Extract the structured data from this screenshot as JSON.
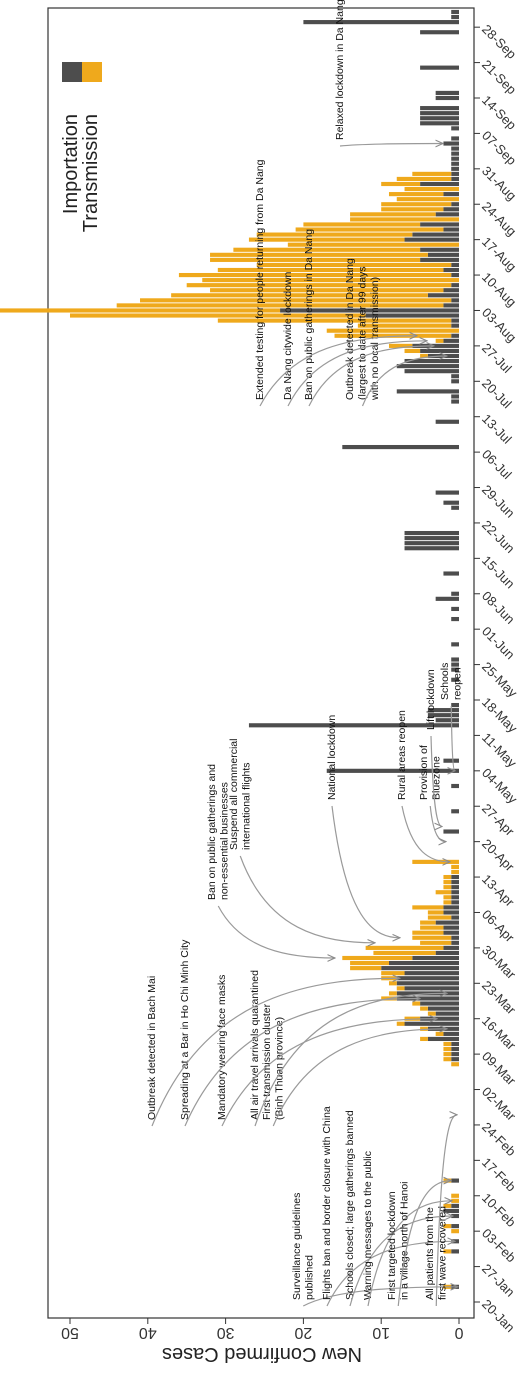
{
  "chart_data": {
    "type": "bar",
    "stacked": true,
    "orientation": "rotated-90-clockwise",
    "ylabel": "New Confirmed Cases",
    "ylim": [
      0,
      55
    ],
    "yticks": [
      0,
      10,
      20,
      30,
      40,
      50
    ],
    "xlim": [
      "2020-01-20",
      "2020-10-01"
    ],
    "date_ticks": [
      "20-Jan",
      "27-Jan",
      "03-Feb",
      "10-Feb",
      "17-Feb",
      "24-Feb",
      "02-Mar",
      "09-Mar",
      "16-Mar",
      "23-Mar",
      "30-Mar",
      "06-Apr",
      "13-Apr",
      "20-Apr",
      "27-Apr",
      "04-May",
      "11-May",
      "18-May",
      "25-May",
      "01-Jun",
      "08-Jun",
      "15-Jun",
      "22-Jun",
      "29-Jun",
      "06-Jul",
      "13-Jul",
      "20-Jul",
      "27-Jul",
      "03-Aug",
      "10-Aug",
      "17-Aug",
      "24-Aug",
      "31-Aug",
      "07-Sep",
      "14-Sep",
      "21-Sep",
      "28-Sep"
    ],
    "legend": {
      "position": "top-left",
      "entries": [
        "Importation",
        "Transmission"
      ]
    },
    "colors": {
      "Importation": "#4d4d4d",
      "Transmission": "#efa91c"
    },
    "series": [
      {
        "name": "Importation",
        "points": [
          [
            "2020-01-23",
            1
          ],
          [
            "2020-01-30",
            1
          ],
          [
            "2020-02-01",
            1
          ],
          [
            "2020-02-04",
            1
          ],
          [
            "2020-02-06",
            1
          ],
          [
            "2020-02-07",
            2
          ],
          [
            "2020-02-08",
            1
          ],
          [
            "2020-02-13",
            1
          ],
          [
            "2020-03-08",
            1
          ],
          [
            "2020-03-09",
            1
          ],
          [
            "2020-03-10",
            1
          ],
          [
            "2020-03-11",
            1
          ],
          [
            "2020-03-12",
            4
          ],
          [
            "2020-03-13",
            2
          ],
          [
            "2020-03-14",
            4
          ],
          [
            "2020-03-15",
            7
          ],
          [
            "2020-03-16",
            5
          ],
          [
            "2020-03-17",
            3
          ],
          [
            "2020-03-18",
            4
          ],
          [
            "2020-03-19",
            5
          ],
          [
            "2020-03-20",
            8
          ],
          [
            "2020-03-21",
            8
          ],
          [
            "2020-03-22",
            7
          ],
          [
            "2020-03-23",
            8
          ],
          [
            "2020-03-24",
            8
          ],
          [
            "2020-03-25",
            7
          ],
          [
            "2020-03-26",
            10
          ],
          [
            "2020-03-27",
            9
          ],
          [
            "2020-03-28",
            6
          ],
          [
            "2020-03-29",
            3
          ],
          [
            "2020-03-30",
            2
          ],
          [
            "2020-03-31",
            1
          ],
          [
            "2020-04-01",
            1
          ],
          [
            "2020-04-02",
            2
          ],
          [
            "2020-04-03",
            2
          ],
          [
            "2020-04-04",
            3
          ],
          [
            "2020-04-05",
            1
          ],
          [
            "2020-04-06",
            2
          ],
          [
            "2020-04-07",
            2
          ],
          [
            "2020-04-08",
            1
          ],
          [
            "2020-04-09",
            1
          ],
          [
            "2020-04-10",
            1
          ],
          [
            "2020-04-11",
            1
          ],
          [
            "2020-04-12",
            1
          ],
          [
            "2020-04-13",
            1
          ],
          [
            "2020-04-22",
            2
          ],
          [
            "2020-04-26",
            1
          ],
          [
            "2020-05-01",
            1
          ],
          [
            "2020-05-04",
            17
          ],
          [
            "2020-05-06",
            2
          ],
          [
            "2020-05-13",
            27
          ],
          [
            "2020-05-14",
            3
          ],
          [
            "2020-05-15",
            4
          ],
          [
            "2020-05-16",
            4
          ],
          [
            "2020-05-17",
            1
          ],
          [
            "2020-05-22",
            1
          ],
          [
            "2020-05-24",
            1
          ],
          [
            "2020-05-25",
            1
          ],
          [
            "2020-05-26",
            1
          ],
          [
            "2020-05-29",
            1
          ],
          [
            "2020-06-03",
            1
          ],
          [
            "2020-06-05",
            1
          ],
          [
            "2020-06-07",
            3
          ],
          [
            "2020-06-08",
            1
          ],
          [
            "2020-06-12",
            2
          ],
          [
            "2020-06-17",
            7
          ],
          [
            "2020-06-18",
            7
          ],
          [
            "2020-06-19",
            7
          ],
          [
            "2020-06-20",
            7
          ],
          [
            "2020-06-25",
            1
          ],
          [
            "2020-06-26",
            2
          ],
          [
            "2020-06-28",
            3
          ],
          [
            "2020-07-07",
            15
          ],
          [
            "2020-07-12",
            3
          ],
          [
            "2020-07-16",
            1
          ],
          [
            "2020-07-17",
            1
          ],
          [
            "2020-07-18",
            8
          ],
          [
            "2020-07-20",
            1
          ],
          [
            "2020-07-21",
            1
          ],
          [
            "2020-07-22",
            7
          ],
          [
            "2020-07-23",
            8
          ],
          [
            "2020-07-24",
            7
          ],
          [
            "2020-07-25",
            4
          ],
          [
            "2020-07-26",
            5
          ],
          [
            "2020-07-27",
            6
          ],
          [
            "2020-07-28",
            2
          ],
          [
            "2020-07-29",
            1
          ],
          [
            "2020-07-31",
            1
          ],
          [
            "2020-08-01",
            1
          ],
          [
            "2020-08-02",
            12
          ],
          [
            "2020-08-03",
            23
          ],
          [
            "2020-08-04",
            2
          ],
          [
            "2020-08-05",
            1
          ],
          [
            "2020-08-06",
            4
          ],
          [
            "2020-08-07",
            2
          ],
          [
            "2020-08-08",
            1
          ],
          [
            "2020-08-10",
            1
          ],
          [
            "2020-08-11",
            2
          ],
          [
            "2020-08-12",
            1
          ],
          [
            "2020-08-13",
            5
          ],
          [
            "2020-08-14",
            4
          ],
          [
            "2020-08-15",
            5
          ],
          [
            "2020-08-17",
            7
          ],
          [
            "2020-08-18",
            6
          ],
          [
            "2020-08-19",
            2
          ],
          [
            "2020-08-20",
            5
          ],
          [
            "2020-08-22",
            3
          ],
          [
            "2020-08-23",
            2
          ],
          [
            "2020-08-24",
            1
          ],
          [
            "2020-08-26",
            2
          ],
          [
            "2020-08-28",
            5
          ],
          [
            "2020-08-29",
            1
          ],
          [
            "2020-08-30",
            1
          ],
          [
            "2020-08-31",
            1
          ],
          [
            "2020-09-01",
            1
          ],
          [
            "2020-09-02",
            1
          ],
          [
            "2020-09-03",
            1
          ],
          [
            "2020-09-04",
            1
          ],
          [
            "2020-09-05",
            2
          ],
          [
            "2020-09-06",
            1
          ],
          [
            "2020-09-08",
            1
          ],
          [
            "2020-09-09",
            5
          ],
          [
            "2020-09-10",
            5
          ],
          [
            "2020-09-11",
            5
          ],
          [
            "2020-09-12",
            5
          ],
          [
            "2020-09-14",
            3
          ],
          [
            "2020-09-15",
            3
          ],
          [
            "2020-09-20",
            5
          ],
          [
            "2020-09-27",
            5
          ],
          [
            "2020-09-29",
            20
          ],
          [
            "2020-09-30",
            1
          ],
          [
            "2020-10-01",
            1
          ]
        ]
      },
      {
        "name": "Transmission",
        "points": [
          [
            "2020-01-23",
            1
          ],
          [
            "2020-01-30",
            1
          ],
          [
            "2020-02-03",
            1
          ],
          [
            "2020-02-04",
            1
          ],
          [
            "2020-02-08",
            1
          ],
          [
            "2020-02-09",
            1
          ],
          [
            "2020-02-10",
            1
          ],
          [
            "2020-02-13",
            1
          ],
          [
            "2020-03-07",
            1
          ],
          [
            "2020-03-08",
            1
          ],
          [
            "2020-03-09",
            1
          ],
          [
            "2020-03-10",
            1
          ],
          [
            "2020-03-11",
            1
          ],
          [
            "2020-03-12",
            1
          ],
          [
            "2020-03-13",
            1
          ],
          [
            "2020-03-14",
            1
          ],
          [
            "2020-03-15",
            1
          ],
          [
            "2020-03-16",
            2
          ],
          [
            "2020-03-17",
            1
          ],
          [
            "2020-03-18",
            1
          ],
          [
            "2020-03-19",
            1
          ],
          [
            "2020-03-20",
            2
          ],
          [
            "2020-03-21",
            1
          ],
          [
            "2020-03-22",
            1
          ],
          [
            "2020-03-23",
            1
          ],
          [
            "2020-03-24",
            2
          ],
          [
            "2020-03-25",
            3
          ],
          [
            "2020-03-26",
            4
          ],
          [
            "2020-03-27",
            5
          ],
          [
            "2020-03-28",
            9
          ],
          [
            "2020-03-29",
            8
          ],
          [
            "2020-03-30",
            10
          ],
          [
            "2020-03-31",
            4
          ],
          [
            "2020-04-01",
            5
          ],
          [
            "2020-04-02",
            4
          ],
          [
            "2020-04-03",
            3
          ],
          [
            "2020-04-04",
            2
          ],
          [
            "2020-04-05",
            3
          ],
          [
            "2020-04-06",
            2
          ],
          [
            "2020-04-07",
            4
          ],
          [
            "2020-04-08",
            1
          ],
          [
            "2020-04-09",
            1
          ],
          [
            "2020-04-10",
            2
          ],
          [
            "2020-04-11",
            1
          ],
          [
            "2020-04-12",
            1
          ],
          [
            "2020-04-13",
            1
          ],
          [
            "2020-04-14",
            1
          ],
          [
            "2020-04-15",
            1
          ],
          [
            "2020-04-16",
            6
          ],
          [
            "2020-07-25",
            1
          ],
          [
            "2020-07-26",
            2
          ],
          [
            "2020-07-27",
            3
          ],
          [
            "2020-07-28",
            1
          ],
          [
            "2020-07-29",
            15
          ],
          [
            "2020-07-30",
            17
          ],
          [
            "2020-07-31",
            12
          ],
          [
            "2020-08-01",
            30
          ],
          [
            "2020-08-02",
            38
          ],
          [
            "2020-08-03",
            48
          ],
          [
            "2020-08-04",
            42
          ],
          [
            "2020-08-05",
            40
          ],
          [
            "2020-08-06",
            33
          ],
          [
            "2020-08-07",
            30
          ],
          [
            "2020-08-08",
            34
          ],
          [
            "2020-08-09",
            33
          ],
          [
            "2020-08-10",
            35
          ],
          [
            "2020-08-11",
            29
          ],
          [
            "2020-08-12",
            25
          ],
          [
            "2020-08-13",
            27
          ],
          [
            "2020-08-14",
            28
          ],
          [
            "2020-08-15",
            24
          ],
          [
            "2020-08-16",
            22
          ],
          [
            "2020-08-17",
            20
          ],
          [
            "2020-08-18",
            20
          ],
          [
            "2020-08-19",
            19
          ],
          [
            "2020-08-20",
            15
          ],
          [
            "2020-08-21",
            14
          ],
          [
            "2020-08-22",
            11
          ],
          [
            "2020-08-23",
            8
          ],
          [
            "2020-08-24",
            9
          ],
          [
            "2020-08-25",
            8
          ],
          [
            "2020-08-26",
            7
          ],
          [
            "2020-08-27",
            7
          ],
          [
            "2020-08-28",
            5
          ],
          [
            "2020-08-29",
            7
          ],
          [
            "2020-08-30",
            5
          ]
        ]
      }
    ],
    "annotations": [
      {
        "lines": [
          "Surveillance guidelines",
          "published"
        ],
        "date": "2020-01-23"
      },
      {
        "lines": [
          "Flights ban and border closure with China"
        ],
        "date": "2020-02-01"
      },
      {
        "lines": [
          "Schools closed; large gatherings banned"
        ],
        "date": "2020-02-06"
      },
      {
        "lines": [
          "Warning messages to the public"
        ],
        "date": "2020-02-09"
      },
      {
        "lines": [
          "First targeted lockdown",
          "in a village north of Hanoi"
        ],
        "date": "2020-02-13"
      },
      {
        "lines": [
          "All patients from the",
          "first wave recovered"
        ],
        "date": "2020-02-26"
      },
      {
        "lines": [
          "First transmission cluster",
          "(Binh Thuan province)"
        ],
        "date": "2020-03-14"
      },
      {
        "lines": [
          "All air travel arrivals quarantined"
        ],
        "date": "2020-03-21"
      },
      {
        "lines": [
          "Mandatory wearing face masks"
        ],
        "date": "2020-03-16"
      },
      {
        "lines": [
          "Spreading at a Bar in Ho Chi Minh City"
        ],
        "date": "2020-03-20"
      },
      {
        "lines": [
          "Outbreak detected in Bach Mai"
        ],
        "date": "2020-03-24"
      },
      {
        "lines": [
          "Ban on public gatherings and",
          "non-essential businesses"
        ],
        "date": "2020-03-28"
      },
      {
        "lines": [
          "Suspend all commercial",
          "international flights"
        ],
        "date": "2020-03-31"
      },
      {
        "lines": [
          "National lockdown"
        ],
        "date": "2020-04-01"
      },
      {
        "lines": [
          "Rural areas reopen"
        ],
        "date": "2020-04-16"
      },
      {
        "lines": [
          "Provision of",
          "Bluezone"
        ],
        "date": "2020-04-20"
      },
      {
        "lines": [
          "Lift lockdown"
        ],
        "date": "2020-04-23"
      },
      {
        "lines": [
          "Schools",
          "reopen"
        ],
        "date": "2020-05-04"
      },
      {
        "lines": [
          "Outbreak detected in Da Nang",
          "(largest to date after 99 days",
          "with no local transmission)"
        ],
        "date": "2020-07-25"
      },
      {
        "lines": [
          "Ban on public gatherings in Da Nang"
        ],
        "date": "2020-07-27"
      },
      {
        "lines": [
          "Da Nang citywide lockdown"
        ],
        "date": "2020-07-28"
      },
      {
        "lines": [
          "Extended testing for people returning from Da Nang"
        ],
        "date": "2020-07-29"
      },
      {
        "lines": [
          "Relaxed lockdown in Da Nang"
        ],
        "date": "2020-09-05"
      }
    ]
  }
}
